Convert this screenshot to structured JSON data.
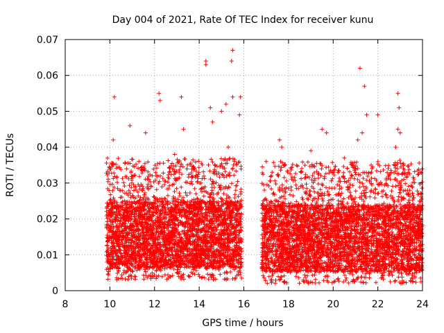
{
  "chart_data": {
    "type": "scatter",
    "title": "Day 004 of 2021, Rate Of TEC Index for receiver kunu",
    "xlabel": "GPS time / hours",
    "ylabel": "ROTI / TECUs",
    "xlim": [
      8,
      24
    ],
    "ylim": [
      0,
      0.07
    ],
    "xticks": [
      "8",
      "10",
      "12",
      "14",
      "16",
      "18",
      "20",
      "22",
      "24"
    ],
    "yticks": [
      "0",
      "0.01",
      "0.02",
      "0.03",
      "0.04",
      "0.05",
      "0.06",
      "0.07"
    ],
    "grid": true,
    "marker": "+",
    "series": [
      {
        "name": "ROTI",
        "color": "#ff0000",
        "segments": [
          {
            "x_start": 9.85,
            "x_end": 15.9,
            "typical_min": 0.003,
            "typical_max": 0.025
          },
          {
            "x_start": 16.8,
            "x_end": 24.0,
            "typical_min": 0.002,
            "typical_max": 0.024
          }
        ],
        "highlights": [
          [
            10.2,
            0.054
          ],
          [
            10.15,
            0.042
          ],
          [
            10.9,
            0.046
          ],
          [
            11.6,
            0.044
          ],
          [
            12.2,
            0.055
          ],
          [
            12.25,
            0.053
          ],
          [
            13.2,
            0.054
          ],
          [
            13.3,
            0.045
          ],
          [
            14.3,
            0.064
          ],
          [
            14.3,
            0.063
          ],
          [
            14.5,
            0.051
          ],
          [
            15.2,
            0.052
          ],
          [
            15.0,
            0.05
          ],
          [
            15.5,
            0.067
          ],
          [
            15.45,
            0.064
          ],
          [
            15.5,
            0.054
          ],
          [
            15.85,
            0.054
          ],
          [
            15.8,
            0.049
          ],
          [
            15.3,
            0.04
          ],
          [
            14.6,
            0.047
          ],
          [
            12.9,
            0.038
          ],
          [
            11.3,
            0.036
          ],
          [
            17.0,
            0.036
          ],
          [
            17.6,
            0.042
          ],
          [
            17.7,
            0.04
          ],
          [
            19.0,
            0.039
          ],
          [
            19.5,
            0.045
          ],
          [
            19.7,
            0.044
          ],
          [
            20.0,
            0.033
          ],
          [
            20.5,
            0.037
          ],
          [
            21.2,
            0.062
          ],
          [
            21.4,
            0.057
          ],
          [
            21.5,
            0.049
          ],
          [
            21.1,
            0.042
          ],
          [
            21.3,
            0.044
          ],
          [
            22.0,
            0.049
          ],
          [
            22.9,
            0.055
          ],
          [
            22.95,
            0.051
          ],
          [
            22.9,
            0.045
          ],
          [
            23.0,
            0.044
          ],
          [
            22.8,
            0.04
          ],
          [
            23.9,
            0.033
          ],
          [
            23.95,
            0.027
          ],
          [
            21.7,
            0.035
          ]
        ]
      }
    ]
  }
}
